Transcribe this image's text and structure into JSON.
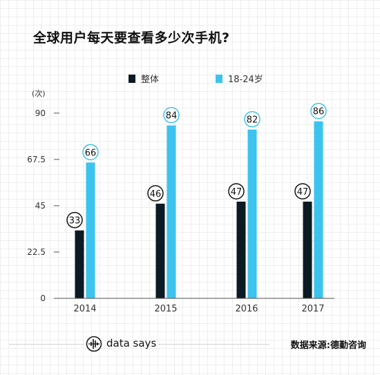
{
  "title": "全球用户每天要查看多少次手机?",
  "chart_data": {
    "type": "bar",
    "categories": [
      "2014",
      "2015",
      "2016",
      "2017"
    ],
    "series": [
      {
        "name": "整体",
        "values": [
          33,
          46,
          47,
          47
        ],
        "color": "#0c1a24"
      },
      {
        "name": "18-24岁",
        "values": [
          66,
          84,
          82,
          86
        ],
        "color": "#3cc3ee"
      }
    ],
    "unit": "(次)",
    "yticks": [
      "0",
      "22.5",
      "45",
      "67.5",
      "90"
    ],
    "ylim": [
      0,
      100
    ],
    "legend_position": "top",
    "label_circle_colors": [
      "#111111",
      "#3cc3ee"
    ]
  },
  "footer": {
    "brand": "data says",
    "brand_icon": "waveform-circle-icon",
    "source": "数据来源:德勤咨询"
  }
}
